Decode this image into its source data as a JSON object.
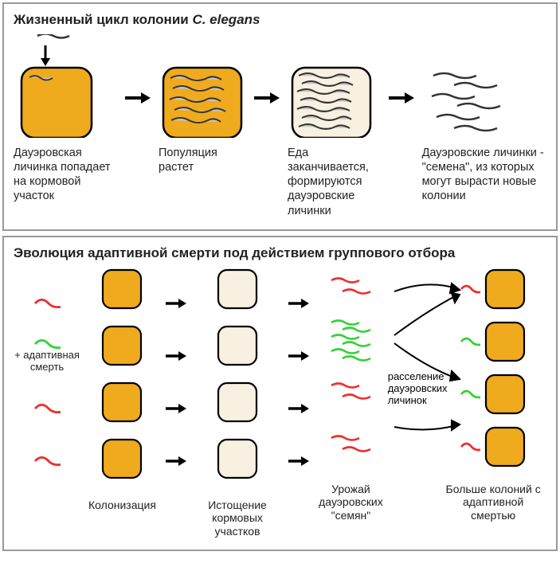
{
  "colors": {
    "orange": "#f0aa1e",
    "orange_light": "#f8f0e0",
    "worm_gray": "#c8c8c8",
    "worm_stroke": "#333333",
    "red": "#ed2f2f",
    "green": "#35d235",
    "arrow": "#000000",
    "border": "#999999"
  },
  "panel1": {
    "title_prefix": "Жизненный цикл колонии ",
    "title_species": "C. elegans",
    "stages": [
      {
        "caption": "Дауэровская личинка попадает на кормовой участок"
      },
      {
        "caption": "Популяция растет"
      },
      {
        "caption": "Еда заканчивается, формируются дауэровские личинки"
      },
      {
        "caption": "Дауэровские личинки - \"семена\", из которых могут вырасти новые колонии"
      }
    ]
  },
  "panel2": {
    "title": "Эволюция адаптивной смерти под действием группового отбора",
    "adaptive_death_label": "+ адаптивная смерть",
    "resettle_label": "расселение дауэровских личинок",
    "captions": {
      "colonization": "Колонизация",
      "depletion": "Истощение кормовых участков",
      "yield": "Урожай дауэровских \"семян\"",
      "result": "Больше колоний с адаптивной смертью"
    },
    "row_colors": [
      "red",
      "green",
      "red",
      "red"
    ],
    "yield_counts": [
      2,
      6,
      2,
      2
    ],
    "result_colors": [
      "red",
      "green",
      "green",
      "red"
    ]
  }
}
